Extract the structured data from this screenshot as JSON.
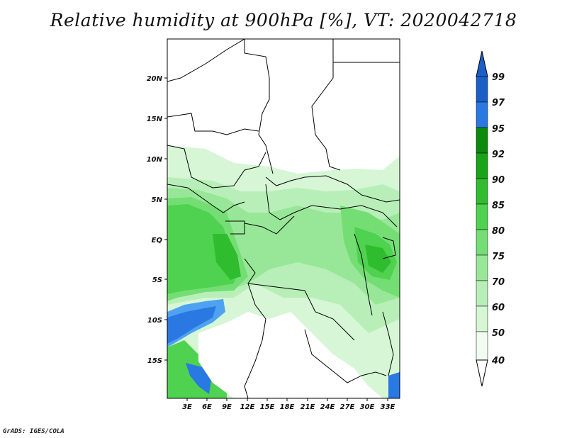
{
  "title": "Relative humidity at 900hPa [%], VT: 2020042718",
  "footer": "GrADS: IGES/COLA",
  "map": {
    "lat_labels": [
      "20N",
      "15N",
      "10N",
      "5N",
      "EQ",
      "5S",
      "10S",
      "15S"
    ],
    "lon_labels": [
      "3E",
      "6E",
      "9E",
      "12E",
      "15E",
      "18E",
      "21E",
      "24E",
      "27E",
      "30E",
      "33E"
    ]
  },
  "colorbar": {
    "labels": [
      "99",
      "97",
      "95",
      "92",
      "90",
      "85",
      "80",
      "75",
      "70",
      "60",
      "50",
      "40"
    ],
    "colors": [
      "#1a5fc8",
      "#2a78e2",
      "#4ea2f0",
      "#0b8a0b",
      "#19a319",
      "#2fbd2f",
      "#4fd24f",
      "#74de74",
      "#98e798",
      "#b8efb8",
      "#d6f6d6",
      "#effcef"
    ],
    "over_color": "#1a5fc8",
    "under_color": "#ffffff"
  },
  "colors": {
    "land_white": "#ffffff",
    "border": "#000000"
  }
}
